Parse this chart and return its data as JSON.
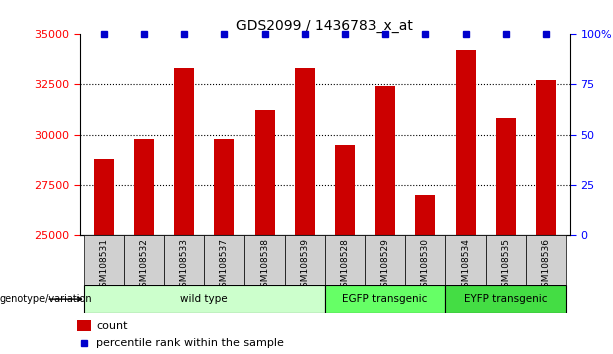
{
  "title": "GDS2099 / 1436783_x_at",
  "categories": [
    "GSM108531",
    "GSM108532",
    "GSM108533",
    "GSM108537",
    "GSM108538",
    "GSM108539",
    "GSM108528",
    "GSM108529",
    "GSM108530",
    "GSM108534",
    "GSM108535",
    "GSM108536"
  ],
  "bar_values": [
    28800,
    29800,
    33300,
    29800,
    31200,
    33300,
    29500,
    32400,
    27000,
    34200,
    30800,
    32700
  ],
  "percentile_values": [
    100,
    100,
    100,
    100,
    100,
    100,
    100,
    100,
    100,
    100,
    100,
    100
  ],
  "bar_color": "#cc0000",
  "percentile_color": "#0000cc",
  "ylim_left": [
    25000,
    35000
  ],
  "ylim_right": [
    0,
    100
  ],
  "yticks_left": [
    25000,
    27500,
    30000,
    32500,
    35000
  ],
  "yticks_right": [
    0,
    25,
    50,
    75,
    100
  ],
  "yticklabels_right": [
    "0",
    "25",
    "50",
    "75",
    "100%"
  ],
  "groups": [
    {
      "label": "wild type",
      "start": 0,
      "end": 6,
      "color": "#ccffcc"
    },
    {
      "label": "EGFP transgenic",
      "start": 6,
      "end": 9,
      "color": "#66ff66"
    },
    {
      "label": "EYFP transgenic",
      "start": 9,
      "end": 12,
      "color": "#44dd44"
    }
  ],
  "group_label_prefix": "genotype/variation",
  "legend_count_label": "count",
  "legend_percentile_label": "percentile rank within the sample",
  "bar_width": 0.5,
  "sample_label_bg": "#d0d0d0"
}
